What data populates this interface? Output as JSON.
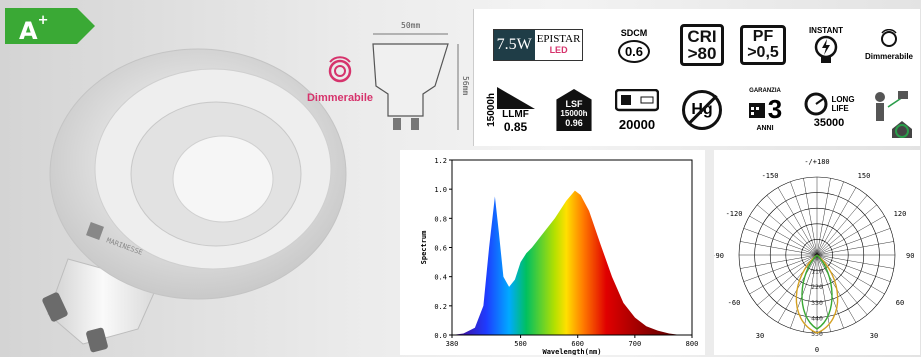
{
  "energy_class": {
    "letter": "A",
    "sup": "+",
    "color": "#3aa935"
  },
  "bulb": {
    "brand": "MARINESSE"
  },
  "dimmable_left": {
    "label": "Dimmerabile",
    "color": "#d6336c"
  },
  "dimensions": {
    "width": "50mm",
    "height": "56mm"
  },
  "features": {
    "watt": "7.5W",
    "epistar": "EPISTAR",
    "led": "LED",
    "sdcm_label": "SDCM",
    "sdcm_value": "0.6",
    "cri_label": "CRI",
    "cri_value": ">80",
    "pf_label": "PF",
    "pf_value": ">0,5",
    "instant": "INSTANT",
    "dimmable": "Dimmerabile",
    "hours": "15000h",
    "llmf_label": "LLMF",
    "llmf_value": "0.85",
    "lsf_label": "LSF",
    "lsf_hours": "15000h",
    "lsf_value": "0.96",
    "cycles": "20000",
    "hg": "Hg",
    "garanzia": "GARANZIA",
    "anni": "ANNI",
    "anni_n": "3",
    "long_life": "LONG",
    "long_life2": "LIFE",
    "long_life_hours": "35000"
  },
  "chart_data": [
    {
      "type": "area",
      "ylabel": "Spectrum",
      "xlabel": "Wavelength(nm)",
      "xlim": [
        380,
        800
      ],
      "ylim": [
        0,
        1.2
      ],
      "xticks": [
        "380",
        "500",
        "600",
        "700",
        "800"
      ],
      "yticks": [
        "0.0",
        "0.2",
        "0.4",
        "0.6",
        "0.8",
        "1.0",
        "1.2"
      ],
      "x": [
        380,
        400,
        420,
        435,
        445,
        455,
        462,
        470,
        480,
        490,
        500,
        510,
        520,
        540,
        560,
        580,
        595,
        605,
        620,
        640,
        660,
        680,
        700,
        720,
        740,
        760,
        780
      ],
      "y": [
        0,
        0.01,
        0.05,
        0.2,
        0.6,
        0.95,
        0.7,
        0.4,
        0.33,
        0.38,
        0.5,
        0.56,
        0.6,
        0.7,
        0.8,
        0.92,
        0.99,
        0.96,
        0.85,
        0.62,
        0.4,
        0.22,
        0.12,
        0.06,
        0.03,
        0.01,
        0
      ]
    },
    {
      "type": "polar",
      "angle_labels": [
        "-/+180",
        "150",
        "-150",
        "120",
        "-120",
        "90",
        "-90",
        "60",
        "-60",
        "30",
        "30",
        "0"
      ],
      "radial_labels": [
        "110",
        "220",
        "330",
        "440",
        "550"
      ]
    }
  ]
}
